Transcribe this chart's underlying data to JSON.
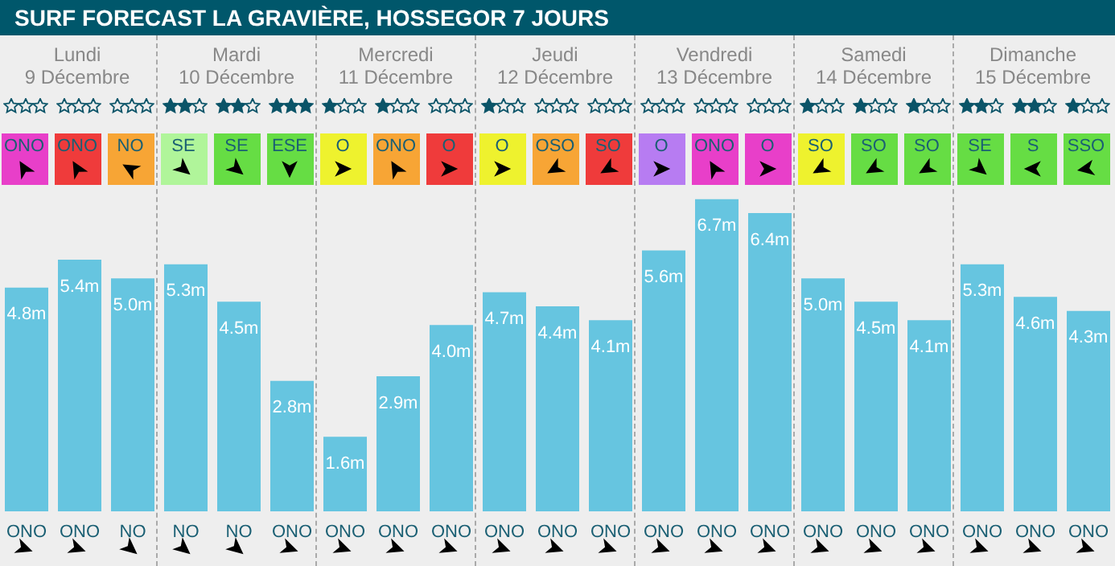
{
  "chart_data": {
    "type": "bar",
    "title": "SURF FORECAST LA GRAVIÈRE, HOSSEGOR 7 JOURS",
    "categories": [
      "ONO",
      "ONO",
      "NO",
      "NO",
      "NO",
      "ONO",
      "ONO",
      "ONO",
      "ONO",
      "ONO",
      "ONO",
      "ONO",
      "ONO",
      "ONO",
      "ONO",
      "ONO",
      "ONO",
      "ONO",
      "ONO",
      "ONO",
      "ONO"
    ],
    "values": [
      4.8,
      5.4,
      5.0,
      5.3,
      4.5,
      2.8,
      1.6,
      2.9,
      4.0,
      4.7,
      4.4,
      4.1,
      5.6,
      6.7,
      6.4,
      5.0,
      4.5,
      4.1,
      5.3,
      4.6,
      4.3
    ],
    "value_labels": [
      "4.8m",
      "5.4m",
      "5.0m",
      "5.3m",
      "4.5m",
      "2.8m",
      "1.6m",
      "2.9m",
      "4.0m",
      "4.7m",
      "4.4m",
      "4.1m",
      "5.6m",
      "6.7m",
      "6.4m",
      "5.0m",
      "4.5m",
      "4.1m",
      "5.3m",
      "4.6m",
      "4.3m"
    ],
    "color": "#66c5e0",
    "annotations": [
      "Lundi",
      "9 Décembre",
      "Mardi",
      "10 Décembre",
      "Mercredi",
      "11 Décembre",
      "Jeudi",
      "12 Décembre",
      "Vendredi",
      "13 Décembre",
      "Samedi",
      "14 Décembre",
      "Dimanche",
      "15 Décembre",
      "ONO",
      "ONO",
      "NO",
      "SE",
      "SE",
      "ESE",
      "O",
      "ONO",
      "O",
      "O",
      "OSO",
      "SO",
      "O",
      "ONO",
      "O",
      "SO",
      "SO",
      "SO",
      "SE",
      "S",
      "SSO"
    ]
  }
}
